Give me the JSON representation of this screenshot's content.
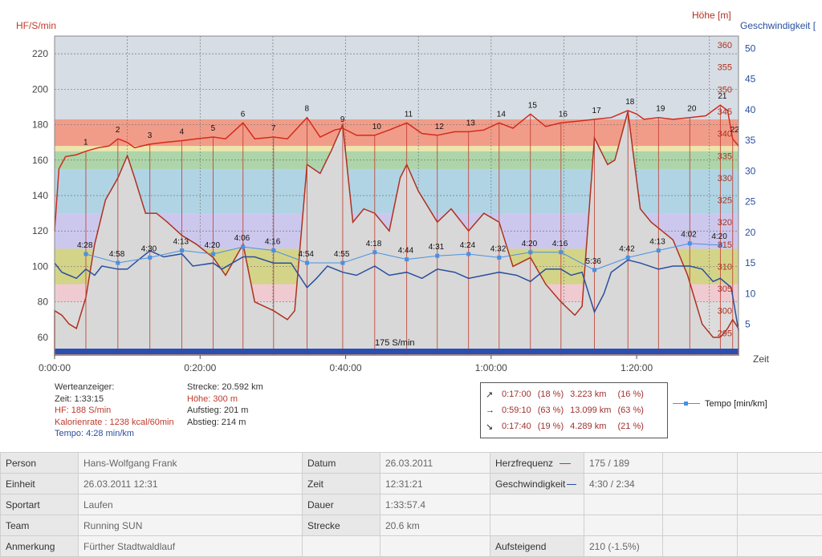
{
  "chart_data": {
    "type": "line",
    "left_axis": {
      "title": "HF/S/min",
      "ticks": [
        60,
        80,
        100,
        120,
        140,
        160,
        180,
        200,
        220
      ],
      "range": [
        50,
        230
      ]
    },
    "hoehe_axis": {
      "title": "Höhe [m]",
      "ticks": [
        295,
        300,
        305,
        310,
        315,
        320,
        325,
        330,
        335,
        340,
        345,
        350,
        355,
        360
      ],
      "range": [
        290,
        362
      ]
    },
    "speed_axis": {
      "title": "Geschwindigkeit [",
      "ticks": [
        5,
        10,
        15,
        20,
        25,
        30,
        35,
        40,
        45,
        50
      ],
      "range": [
        0,
        52
      ]
    },
    "x_axis": {
      "title": "Zeit",
      "ticks": [
        "0:00:00",
        "0:20:00",
        "0:40:00",
        "1:00:00",
        "1:20:00"
      ],
      "tick_minutes": [
        0,
        20,
        40,
        60,
        80
      ],
      "range_minutes": [
        0,
        94
      ]
    },
    "zones": [
      {
        "from": 80,
        "to": 90,
        "color": "#f2c8cf"
      },
      {
        "from": 90,
        "to": 110,
        "color": "#d2d27a"
      },
      {
        "from": 110,
        "to": 130,
        "color": "#c9c4f0"
      },
      {
        "from": 130,
        "to": 155,
        "color": "#a9d2e6"
      },
      {
        "from": 155,
        "to": 165,
        "color": "#a5d3a0"
      },
      {
        "from": 165,
        "to": 168,
        "color": "#f0e6a2"
      },
      {
        "from": 168,
        "to": 183,
        "color": "#f5917a"
      }
    ],
    "threshold": {
      "label": "175 S/min"
    },
    "laps": [
      {
        "label": "1",
        "t": 4.3,
        "hr": 165
      },
      {
        "label": "2",
        "t": 8.7,
        "hr": 172
      },
      {
        "label": "3",
        "t": 13.1,
        "hr": 169
      },
      {
        "label": "4",
        "t": 17.5,
        "hr": 171
      },
      {
        "label": "5",
        "t": 21.8,
        "hr": 173
      },
      {
        "label": "6",
        "t": 25.9,
        "hr": 181
      },
      {
        "label": "7",
        "t": 30.1,
        "hr": 173
      },
      {
        "label": "8",
        "t": 34.7,
        "hr": 184
      },
      {
        "label": "9",
        "t": 39.6,
        "hr": 178
      },
      {
        "label": "10",
        "t": 44.0,
        "hr": 174
      },
      {
        "label": "11",
        "t": 48.4,
        "hr": 181
      },
      {
        "label": "12",
        "t": 52.6,
        "hr": 174
      },
      {
        "label": "13",
        "t": 56.9,
        "hr": 176
      },
      {
        "label": "14",
        "t": 61.1,
        "hr": 181
      },
      {
        "label": "15",
        "t": 65.4,
        "hr": 186
      },
      {
        "label": "16",
        "t": 69.6,
        "hr": 181
      },
      {
        "label": "17",
        "t": 74.2,
        "hr": 183
      },
      {
        "label": "18",
        "t": 78.8,
        "hr": 188
      },
      {
        "label": "19",
        "t": 83.0,
        "hr": 184
      },
      {
        "label": "20",
        "t": 87.3,
        "hr": 184
      },
      {
        "label": "21",
        "t": 91.5,
        "hr": 191
      },
      {
        "label": "22",
        "t": 93.2,
        "hr": 172
      }
    ],
    "tempo_series": {
      "name": "Tempo [min/km]",
      "points": [
        {
          "t": 4.3,
          "y": 107,
          "label": "4:28"
        },
        {
          "t": 8.7,
          "y": 102,
          "label": "4:58"
        },
        {
          "t": 13.1,
          "y": 105,
          "label": "4:30"
        },
        {
          "t": 17.5,
          "y": 109,
          "label": "4:13"
        },
        {
          "t": 21.8,
          "y": 107,
          "label": "4:20"
        },
        {
          "t": 25.9,
          "y": 111,
          "label": "4:06"
        },
        {
          "t": 30.1,
          "y": 109,
          "label": "4:16"
        },
        {
          "t": 34.7,
          "y": 102,
          "label": "4:54"
        },
        {
          "t": 39.6,
          "y": 102,
          "label": "4:55"
        },
        {
          "t": 44.0,
          "y": 108,
          "label": "4:18"
        },
        {
          "t": 48.4,
          "y": 104,
          "label": "4:44"
        },
        {
          "t": 52.6,
          "y": 106,
          "label": "4:31"
        },
        {
          "t": 56.9,
          "y": 107,
          "label": "4:24"
        },
        {
          "t": 61.1,
          "y": 105,
          "label": "4:32"
        },
        {
          "t": 65.4,
          "y": 108,
          "label": "4:20"
        },
        {
          "t": 69.6,
          "y": 108,
          "label": "4:16"
        },
        {
          "t": 74.2,
          "y": 98,
          "label": "5:36"
        },
        {
          "t": 78.8,
          "y": 105,
          "label": "4:42"
        },
        {
          "t": 83.0,
          "y": 109,
          "label": "4:13"
        },
        {
          "t": 87.3,
          "y": 113,
          "label": "4:02"
        },
        {
          "t": 91.5,
          "y": 112,
          "label": "4:20"
        }
      ]
    },
    "hr_series": {
      "name": "HF",
      "t": [
        0,
        0.6,
        1.5,
        3,
        4.3,
        6,
        7.5,
        8.7,
        10,
        11,
        12,
        13.1,
        15,
        17.5,
        19.5,
        21.8,
        23.5,
        25.9,
        27.5,
        30.1,
        32,
        34.7,
        36.5,
        38.5,
        39.6,
        41.5,
        44,
        46,
        48.4,
        50.5,
        52.6,
        55,
        56.9,
        59,
        61.1,
        63,
        65.4,
        67.5,
        69.6,
        72,
        74.2,
        76.5,
        78.8,
        80,
        81,
        83,
        85,
        87.3,
        89.5,
        91.5,
        92.5,
        93.2,
        94
      ],
      "hr": [
        120,
        155,
        162,
        163,
        165,
        167,
        168,
        172,
        170,
        167,
        168,
        169,
        170,
        171,
        172,
        173,
        172,
        181,
        172,
        173,
        172,
        184,
        173,
        177,
        178,
        174,
        174,
        177,
        181,
        175,
        174,
        176,
        176,
        177,
        181,
        178,
        186,
        179,
        181,
        182,
        183,
        184,
        188,
        186,
        183,
        184,
        183,
        184,
        185,
        191,
        188,
        172,
        168
      ]
    },
    "speed_series": {
      "name": "Geschwindigkeit",
      "t": [
        0,
        1,
        2,
        3,
        4.3,
        5.5,
        6.5,
        8.7,
        10,
        11.5,
        13.1,
        15,
        17.5,
        19,
        21.8,
        23,
        25.9,
        27.5,
        30.1,
        32.5,
        34.7,
        36,
        37.5,
        39.6,
        41.5,
        44,
        46,
        48.4,
        50.5,
        52.6,
        55,
        56.9,
        59,
        61.1,
        63.5,
        65.4,
        67.5,
        69.6,
        71,
        72.5,
        74.2,
        75.5,
        76.5,
        78.8,
        80.5,
        83,
        85,
        87.3,
        89,
        90.5,
        91.5,
        93,
        94
      ],
      "speed": [
        15,
        13.5,
        13,
        12.5,
        14,
        13,
        14.5,
        14,
        14,
        15.5,
        17,
        16,
        16.5,
        14.5,
        15,
        14,
        16,
        16,
        15,
        15,
        11,
        12.5,
        14.5,
        13.5,
        13,
        14.5,
        13,
        13.5,
        12.5,
        14,
        13.5,
        12.5,
        13,
        13.5,
        13,
        12,
        14,
        14,
        13,
        13.5,
        7,
        10,
        13.5,
        15.5,
        15,
        14,
        14.5,
        14.5,
        14,
        12,
        12.5,
        11,
        4
      ]
    },
    "hoehe_series": {
      "name": "Höhe",
      "t": [
        0,
        1,
        2,
        3,
        4.3,
        5.5,
        7,
        8.7,
        10,
        11,
        12.5,
        14,
        15.5,
        17.5,
        19.5,
        21.8,
        23.5,
        25.9,
        27.5,
        30.1,
        32,
        33,
        34.7,
        36.5,
        38,
        39.6,
        41,
        42.5,
        44,
        46,
        47.5,
        48.4,
        50,
        52.6,
        54.5,
        56.9,
        59,
        61.1,
        63,
        65.4,
        67.5,
        69.6,
        71.5,
        72.5,
        74.2,
        76,
        77,
        78.8,
        80.5,
        82,
        83.5,
        85,
        87,
        89,
        90.5,
        91.5,
        92.5,
        93.2,
        94
      ],
      "hoehe": [
        300,
        299,
        297,
        296,
        303,
        315,
        325,
        330,
        335,
        330,
        322,
        322,
        320,
        317,
        315,
        312,
        308,
        315,
        302,
        300,
        298,
        300,
        333,
        331,
        336,
        342,
        320,
        323,
        322,
        318,
        330,
        333,
        327,
        320,
        323,
        318,
        322,
        320,
        310,
        312,
        306,
        302,
        299,
        301,
        339,
        333,
        334,
        345,
        323,
        320,
        318,
        316,
        308,
        297,
        294,
        294,
        296,
        298,
        296
      ]
    }
  },
  "info_left": {
    "title": "Werteanzeiger:",
    "zeit": "Zeit: 1:33:15",
    "hf": "HF: 188 S/min",
    "kalorien": "Kalorienrate : 1238 kcal/60min",
    "tempo": "Tempo: 4:28 min/km"
  },
  "info_mid": {
    "strecke": "Strecke: 20.592 km",
    "hoehe": "Höhe: 300 m",
    "aufstieg": "Aufstieg: 201 m",
    "abstieg": "Abstieg: 214 m"
  },
  "zones_box": [
    {
      "arrow": "↗",
      "time": "0:17:00",
      "pct": "(18 %)",
      "km": "3.223 km",
      "kmpct": "(16 %)"
    },
    {
      "arrow": "→",
      "time": "0:59:10",
      "pct": "(63 %)",
      "km": "13.099 km",
      "kmpct": "(63 %)"
    },
    {
      "arrow": "↘",
      "time": "0:17:40",
      "pct": "(19 %)",
      "km": "4.289 km",
      "kmpct": "(21 %)"
    }
  ],
  "legend": {
    "tempo": "Tempo [min/km]"
  },
  "table": {
    "rows": [
      [
        "Person",
        "Hans-Wolfgang Frank",
        "Datum",
        "26.03.2011",
        "Herzfrequenz",
        "175 / 189"
      ],
      [
        "Einheit",
        "26.03.2011 12:31",
        "Zeit",
        "12:31:21",
        "Geschwindigkeit",
        "4:30 / 2:34"
      ],
      [
        "Sportart",
        "Laufen",
        "Dauer",
        "1:33:57.4",
        "",
        ""
      ],
      [
        "Team",
        "Running SUN",
        "Strecke",
        "20.6 km",
        "",
        ""
      ],
      [
        "Anmerkung",
        "Fürther Stadtwaldlauf",
        "",
        "",
        "Aufsteigend",
        "210 (-1.5%)"
      ]
    ]
  },
  "colors": {
    "hr": "#c0392b",
    "hoehe": "#b03020",
    "speed": "#2a4f9e",
    "tempo": "#4a90e2"
  }
}
